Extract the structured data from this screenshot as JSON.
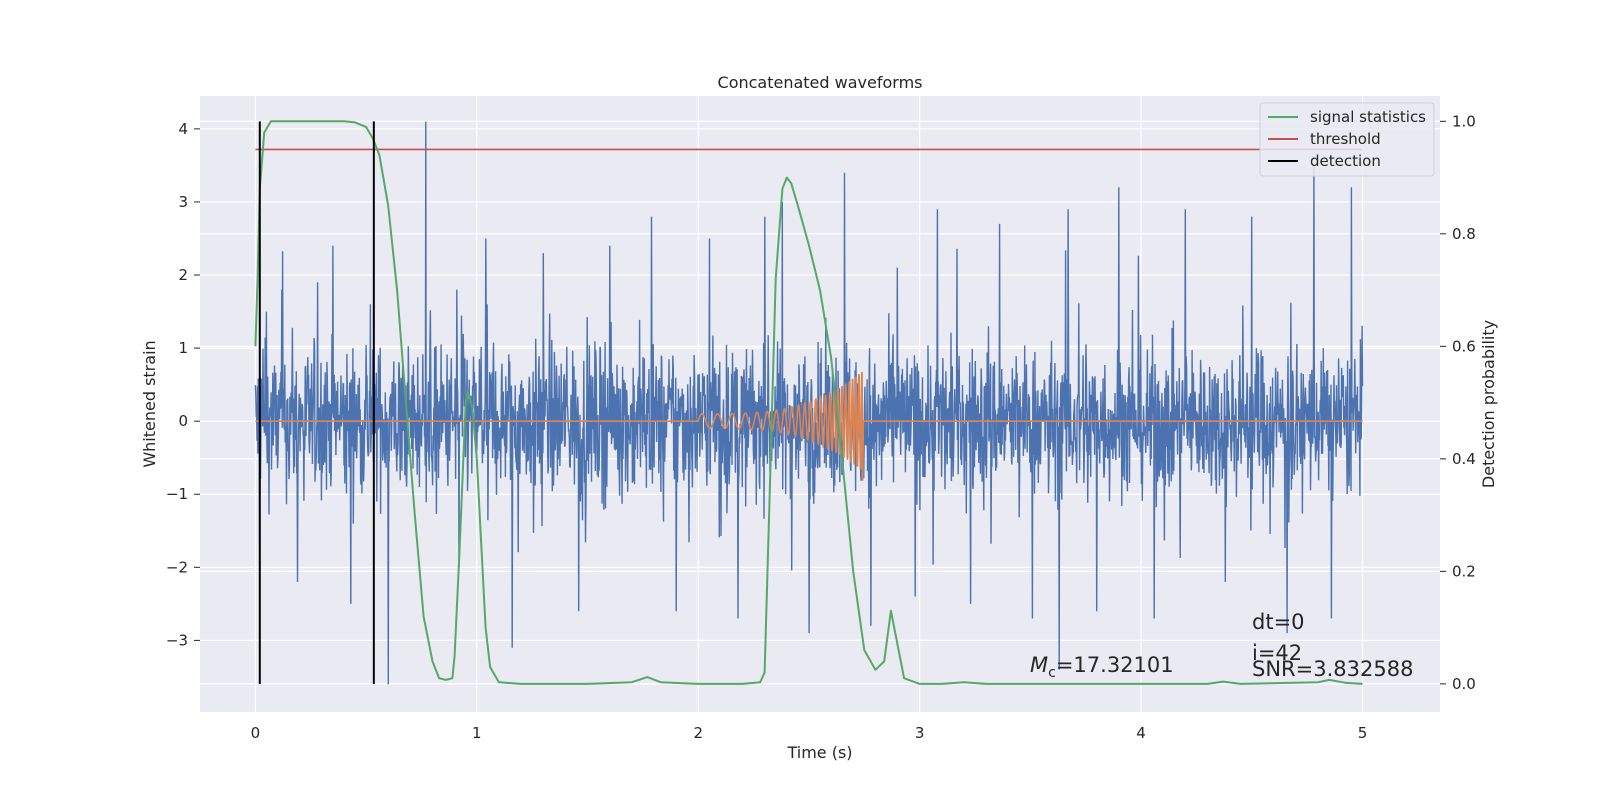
{
  "chart_data": {
    "type": "line",
    "title": "Concatenated waveforms",
    "xlabel": "Time (s)",
    "ylabel": "Whitened strain",
    "y2label": "Detection probability",
    "xlim": [
      -0.25,
      5.35
    ],
    "ylim": [
      -3.98,
      4.45
    ],
    "y2lim": [
      -0.05,
      1.045
    ],
    "xticks": [
      0,
      1,
      2,
      3,
      4,
      5
    ],
    "yticks": [
      -3,
      -2,
      -1,
      0,
      1,
      2,
      3,
      4
    ],
    "y2ticks": [
      0.0,
      0.2,
      0.4,
      0.6,
      0.8,
      1.0
    ],
    "xtick_labels": [
      "0",
      "1",
      "2",
      "3",
      "4",
      "5"
    ],
    "ytick_labels": [
      "−3",
      "−2",
      "−1",
      "0",
      "1",
      "2",
      "3",
      "4"
    ],
    "y2tick_labels": [
      "0.0",
      "0.2",
      "0.4",
      "0.6",
      "0.8",
      "1.0"
    ],
    "grid": true,
    "legend_position": "top-right",
    "colors": {
      "background": "#eaeaf2",
      "grid": "#ffffff",
      "strain": "#4c72b0",
      "waveform": "#dd8452",
      "statistics": "#55a868",
      "threshold": "#c44e52",
      "detection": "#000000"
    },
    "series": [
      {
        "name": "signal statistics",
        "axis": "right",
        "points": [
          [
            0,
            0.6
          ],
          [
            0.01,
            0.72
          ],
          [
            0.02,
            0.88
          ],
          [
            0.04,
            0.98
          ],
          [
            0.07,
            1.0
          ],
          [
            0.2,
            1.0
          ],
          [
            0.3,
            1.0
          ],
          [
            0.4,
            1.0
          ],
          [
            0.45,
            0.998
          ],
          [
            0.5,
            0.99
          ],
          [
            0.53,
            0.97
          ],
          [
            0.56,
            0.94
          ],
          [
            0.6,
            0.85
          ],
          [
            0.64,
            0.7
          ],
          [
            0.68,
            0.5
          ],
          [
            0.72,
            0.3
          ],
          [
            0.76,
            0.12
          ],
          [
            0.8,
            0.04
          ],
          [
            0.83,
            0.01
          ],
          [
            0.86,
            0.007
          ],
          [
            0.89,
            0.01
          ],
          [
            0.9,
            0.05
          ],
          [
            0.92,
            0.22
          ],
          [
            0.95,
            0.5
          ],
          [
            0.96,
            0.52
          ],
          [
            0.98,
            0.49
          ],
          [
            1.0,
            0.4
          ],
          [
            1.02,
            0.25
          ],
          [
            1.04,
            0.1
          ],
          [
            1.06,
            0.03
          ],
          [
            1.1,
            0.003
          ],
          [
            1.2,
            0.0
          ],
          [
            1.5,
            0.0
          ],
          [
            1.7,
            0.003
          ],
          [
            1.77,
            0.012
          ],
          [
            1.83,
            0.003
          ],
          [
            2.0,
            0.0
          ],
          [
            2.2,
            0.0
          ],
          [
            2.28,
            0.003
          ],
          [
            2.3,
            0.02
          ],
          [
            2.32,
            0.3
          ],
          [
            2.35,
            0.72
          ],
          [
            2.38,
            0.88
          ],
          [
            2.4,
            0.9
          ],
          [
            2.42,
            0.89
          ],
          [
            2.45,
            0.85
          ],
          [
            2.5,
            0.78
          ],
          [
            2.55,
            0.7
          ],
          [
            2.6,
            0.58
          ],
          [
            2.65,
            0.4
          ],
          [
            2.7,
            0.2
          ],
          [
            2.75,
            0.06
          ],
          [
            2.8,
            0.025
          ],
          [
            2.84,
            0.04
          ],
          [
            2.87,
            0.13
          ],
          [
            2.9,
            0.07
          ],
          [
            2.93,
            0.01
          ],
          [
            3.0,
            0.0
          ],
          [
            3.1,
            0.0
          ],
          [
            3.2,
            0.003
          ],
          [
            3.3,
            0.0
          ],
          [
            4.3,
            0.0
          ],
          [
            4.37,
            0.004
          ],
          [
            4.45,
            0.0
          ],
          [
            4.8,
            0.003
          ],
          [
            4.85,
            0.007
          ],
          [
            4.92,
            0.002
          ],
          [
            5.0,
            0.0
          ]
        ]
      },
      {
        "name": "threshold",
        "axis": "right",
        "x": [
          0,
          5
        ],
        "value": 0.95
      },
      {
        "name": "detection",
        "axis": "right",
        "x_positions": [
          0.02,
          0.535
        ],
        "y_range": [
          0.0,
          1.0
        ]
      },
      {
        "axis": "left",
        "description": "whitened noisy strain, fluctuating approx. between -3.6 and 4.1",
        "x_range": [
          0,
          5
        ],
        "envelope": 0.95,
        "spikes": [
          [
            0.02,
            -1.7
          ],
          [
            0.05,
            1.5
          ],
          [
            0.12,
            1.8
          ],
          [
            0.19,
            -2.2
          ],
          [
            0.28,
            1.9
          ],
          [
            0.35,
            2.4
          ],
          [
            0.43,
            -2.5
          ],
          [
            0.52,
            1.6
          ],
          [
            0.6,
            -3.6
          ],
          [
            0.77,
            4.1
          ],
          [
            0.91,
            1.8
          ],
          [
            0.92,
            -2.0
          ],
          [
            1.04,
            2.5
          ],
          [
            1.16,
            -3.1
          ],
          [
            1.3,
            2.3
          ],
          [
            1.46,
            -2.6
          ],
          [
            1.6,
            2.4
          ],
          [
            1.79,
            2.8
          ],
          [
            1.9,
            -2.6
          ],
          [
            2.05,
            2.5
          ],
          [
            2.18,
            -2.7
          ],
          [
            2.3,
            2.8
          ],
          [
            2.38,
            3.0
          ],
          [
            2.5,
            -2.9
          ],
          [
            2.66,
            3.4
          ],
          [
            2.78,
            -2.8
          ],
          [
            2.9,
            2.1
          ],
          [
            2.98,
            -2.4
          ],
          [
            3.08,
            2.9
          ],
          [
            3.23,
            -2.5
          ],
          [
            3.36,
            2.7
          ],
          [
            3.51,
            -2.7
          ],
          [
            3.63,
            -3.4
          ],
          [
            3.67,
            2.9
          ],
          [
            3.8,
            -2.6
          ],
          [
            3.9,
            3.2
          ],
          [
            4.06,
            -2.7
          ],
          [
            4.2,
            2.9
          ],
          [
            4.38,
            -2.2
          ],
          [
            4.5,
            2.8
          ],
          [
            4.66,
            -2.9
          ],
          [
            4.78,
            3.5
          ],
          [
            4.86,
            -2.7
          ],
          [
            4.95,
            3.2
          ]
        ]
      },
      {
        "axis": "left",
        "description": "injected chirp waveform",
        "zero_line_x": [
          0,
          5
        ],
        "chirp_start": 2.0,
        "chirp_end": 2.74,
        "peak_amplitude": 0.68
      }
    ],
    "annotations": {
      "mc_symbol": "M",
      "mc_subscript": "c",
      "mc_value": "=17.32101",
      "dt": "dt=0",
      "i": "i=42",
      "snr": "SNR=3.832588"
    },
    "legend": [
      "signal statistics",
      "threshold",
      "detection"
    ]
  }
}
